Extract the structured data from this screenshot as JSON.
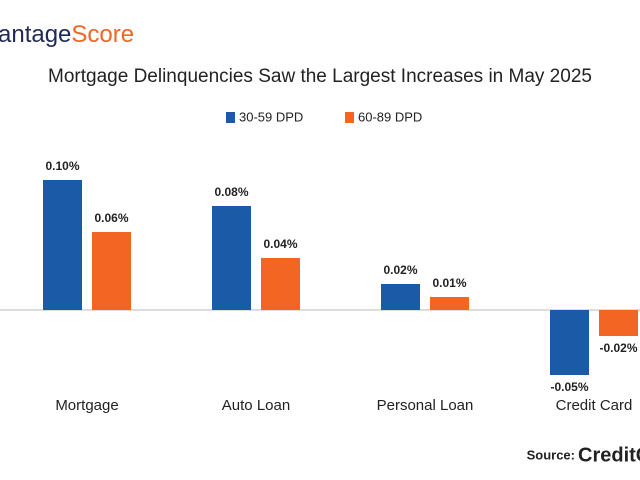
{
  "logo": {
    "dark": "antage",
    "accent": "Score"
  },
  "source": {
    "label": "Source:",
    "brand": "CreditC"
  },
  "chart_data": {
    "type": "bar",
    "title": "Mortgage Delinquencies Saw the Largest Increases in May 2025",
    "categories": [
      "Mortgage",
      "Auto Loan",
      "Personal Loan",
      "Credit Card"
    ],
    "series": [
      {
        "name": "30-59 DPD",
        "color": "#1b5aa6",
        "values": [
          0.1,
          0.08,
          0.02,
          -0.05
        ],
        "value_labels": [
          "0.10%",
          "0.08%",
          "0.02%",
          "-0.05%"
        ]
      },
      {
        "name": "60-89 DPD",
        "color": "#f26522",
        "values": [
          0.06,
          0.04,
          0.01,
          -0.02
        ],
        "value_labels": [
          "0.06%",
          "0.04%",
          "0.01%",
          "-0.02%"
        ]
      }
    ]
  }
}
